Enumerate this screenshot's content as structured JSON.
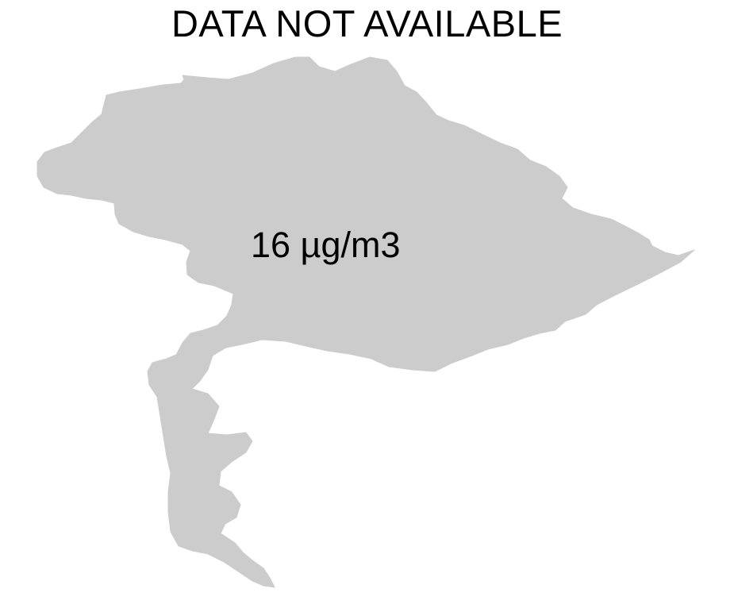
{
  "map": {
    "title": "DATA NOT AVAILABLE",
    "region_label": "16 µg/m3",
    "region_fill": "#cccccc",
    "background": "#ffffff"
  }
}
